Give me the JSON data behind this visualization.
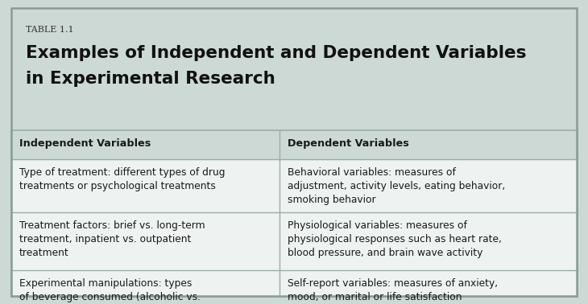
{
  "table_label": "TABLE 1.1",
  "title_line1": "Examples of Independent and Dependent Variables",
  "title_line2": "in Experimental Research",
  "col_headers": [
    "Independent Variables",
    "Dependent Variables"
  ],
  "rows": [
    [
      "Type of treatment: different types of drug\ntreatments or psychological treatments",
      "Behavioral variables: measures of\nadjustment, activity levels, eating behavior,\nsmoking behavior"
    ],
    [
      "Treatment factors: brief vs. long-term\ntreatment, inpatient vs. outpatient\ntreatment",
      "Physiological variables: measures of\nphysiological responses such as heart rate,\nblood pressure, and brain wave activity"
    ],
    [
      "Experimental manipulations: types\nof beverage consumed (alcoholic vs.\nnonalcoholic)",
      "Self-report variables: measures of anxiety,\nmood, or marital or life satisfaction"
    ]
  ],
  "bg_color": "#cdd9d5",
  "table_bg": "#eef2f0",
  "header_bg": "#cdd9d5",
  "border_color": "#9aada8",
  "text_color": "#1a1a1a",
  "title_color": "#111111",
  "label_color": "#333333",
  "outer_border_color": "#8a9d99",
  "fig_width": 7.3,
  "fig_height": 3.78,
  "dpi": 100
}
